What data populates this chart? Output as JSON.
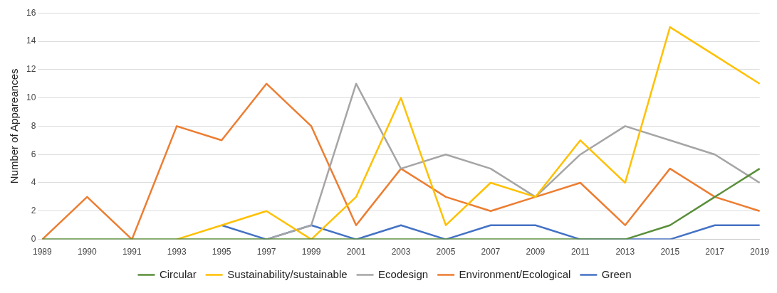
{
  "chart_data": {
    "type": "line",
    "ylabel": "Number of Appareances",
    "categories": [
      "1989",
      "1990",
      "1991",
      "1993",
      "1995",
      "1997",
      "1999",
      "2001",
      "2003",
      "2005",
      "2007",
      "2009",
      "2011",
      "2013",
      "2015",
      "2017",
      "2019"
    ],
    "series": [
      {
        "name": "Green",
        "color": "#4472c4",
        "values": [
          null,
          null,
          null,
          null,
          1,
          0,
          1,
          0,
          1,
          0,
          1,
          1,
          0,
          0,
          0,
          1,
          1
        ]
      },
      {
        "name": "Environment/Ecological",
        "color": "#ed7d31",
        "values": [
          0,
          3,
          0,
          8,
          7,
          11,
          8,
          1,
          5,
          3,
          2,
          3,
          4,
          1,
          5,
          3,
          2
        ]
      },
      {
        "name": "Ecodesign",
        "color": "#a5a5a5",
        "values": [
          null,
          null,
          null,
          null,
          null,
          0,
          1,
          11,
          5,
          6,
          5,
          3,
          6,
          8,
          7,
          6,
          4
        ]
      },
      {
        "name": "Sustainability/sustainable",
        "color": "#ffc000",
        "values": [
          null,
          null,
          null,
          0,
          1,
          2,
          0,
          3,
          10,
          1,
          4,
          3,
          7,
          4,
          15,
          13,
          11
        ]
      },
      {
        "name": "Circular",
        "color": "#5a8f3a",
        "values": [
          0,
          0,
          0,
          0,
          0,
          0,
          0,
          0,
          0,
          0,
          0,
          0,
          0,
          0,
          1,
          3,
          5
        ]
      }
    ],
    "ylim": [
      0,
      16
    ],
    "yticks": [
      0,
      2,
      4,
      6,
      8,
      10,
      12,
      14,
      16
    ],
    "grid": "y",
    "legend": "bottom",
    "marker": "none",
    "line_style": "solid"
  }
}
